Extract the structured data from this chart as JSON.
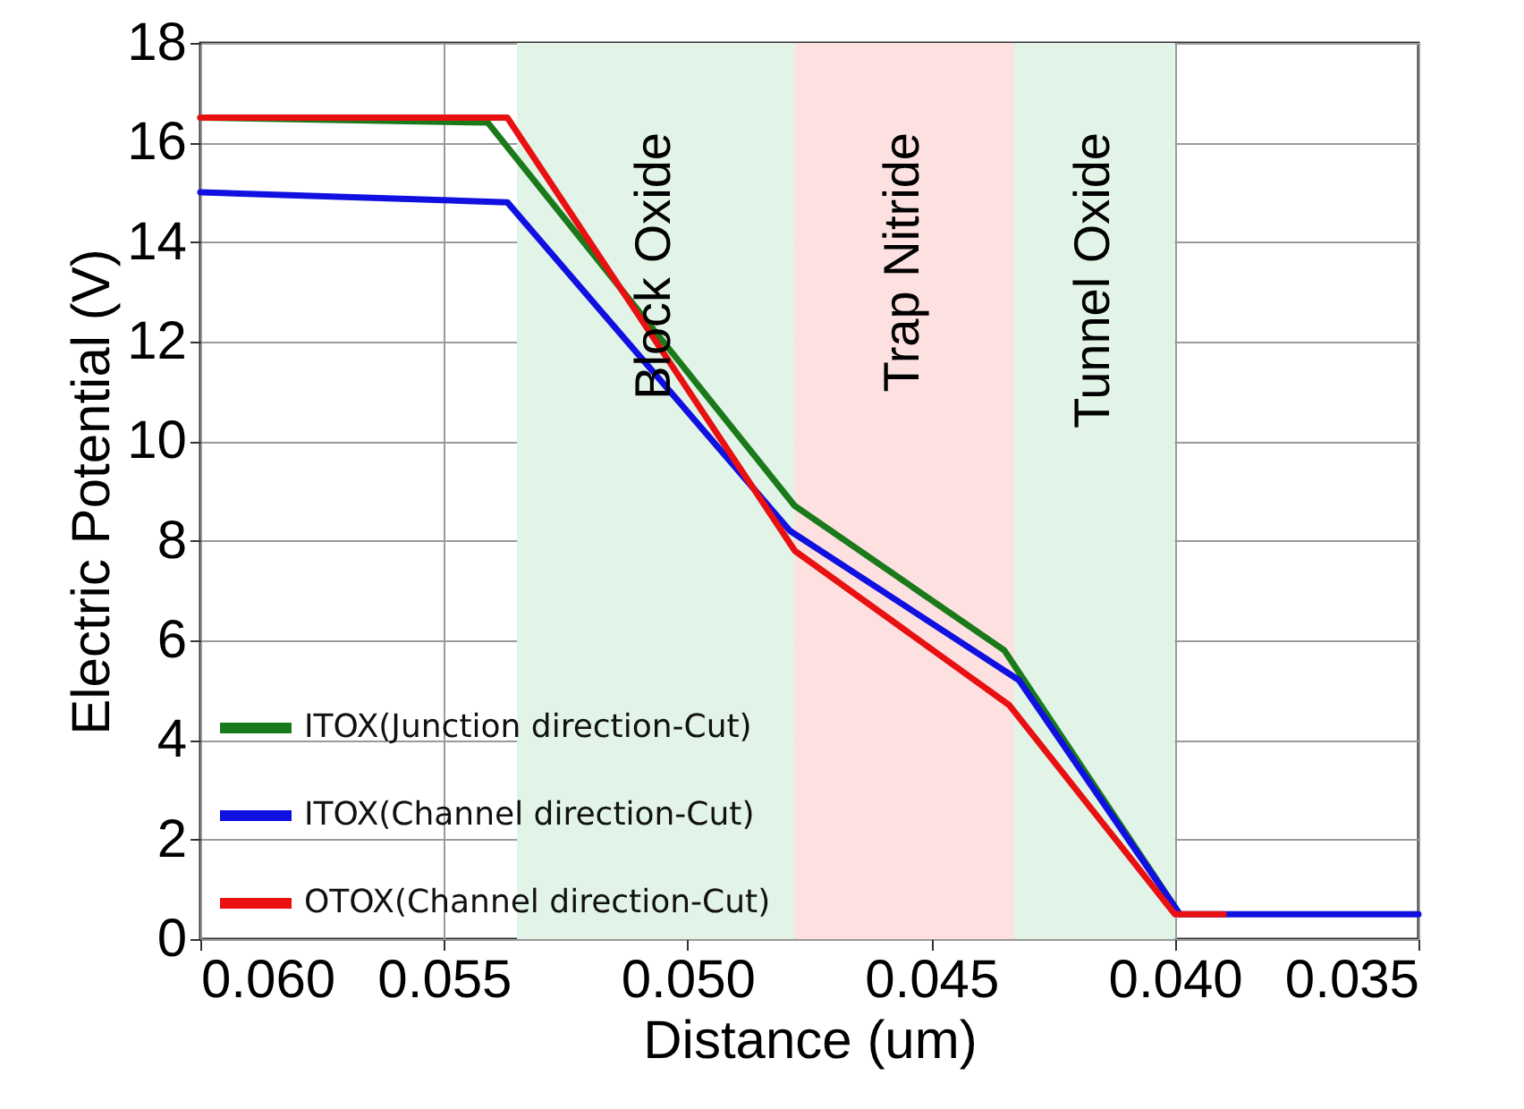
{
  "chart_data": {
    "type": "line",
    "xlabel": "Distance (um)",
    "ylabel": "Electric Potential (V)",
    "xlim": [
      0.06,
      0.035
    ],
    "ylim": [
      0,
      18
    ],
    "xticks": [
      {
        "value": 0.06,
        "label": "0.060"
      },
      {
        "value": 0.055,
        "label": "0.055"
      },
      {
        "value": 0.05,
        "label": "0.050"
      },
      {
        "value": 0.045,
        "label": "0.045"
      },
      {
        "value": 0.04,
        "label": "0.040"
      },
      {
        "value": 0.035,
        "label": "0.035"
      }
    ],
    "yticks": [
      0,
      2,
      4,
      6,
      8,
      10,
      12,
      14,
      16,
      18
    ],
    "grid": true,
    "legend": "bottom left",
    "line_style": "solid",
    "marker": "none",
    "bands": [
      {
        "axis": "x",
        "from": 0.0535,
        "to": 0.0478,
        "label": "Block Oxide",
        "color": "#e2f3e8"
      },
      {
        "axis": "x",
        "from": 0.0478,
        "to": 0.0433,
        "label": "Trap Nitride",
        "color": "#fde1e1"
      },
      {
        "axis": "x",
        "from": 0.0433,
        "to": 0.04,
        "label": "Tunnel Oxide",
        "color": "#e2f3e8"
      }
    ],
    "series": [
      {
        "name": "ITOX(Junction direction-Cut)",
        "color": "#1a7a1a",
        "x": [
          0.06,
          0.0541,
          0.0478,
          0.0435,
          0.0399
        ],
        "values": [
          16.5,
          16.4,
          8.7,
          5.8,
          0.5
        ]
      },
      {
        "name": "ITOX(Channel direction-Cut)",
        "color": "#1010e0",
        "x": [
          0.06,
          0.0537,
          0.0479,
          0.0432,
          0.0399,
          0.035
        ],
        "values": [
          15.0,
          14.8,
          8.2,
          5.2,
          0.5,
          0.5
        ]
      },
      {
        "name": "OTOX(Channel direction-Cut)",
        "color": "#e81010",
        "x": [
          0.06,
          0.0537,
          0.0478,
          0.0434,
          0.04,
          0.039
        ],
        "values": [
          16.5,
          16.5,
          7.8,
          4.7,
          0.5,
          0.5
        ]
      }
    ]
  }
}
